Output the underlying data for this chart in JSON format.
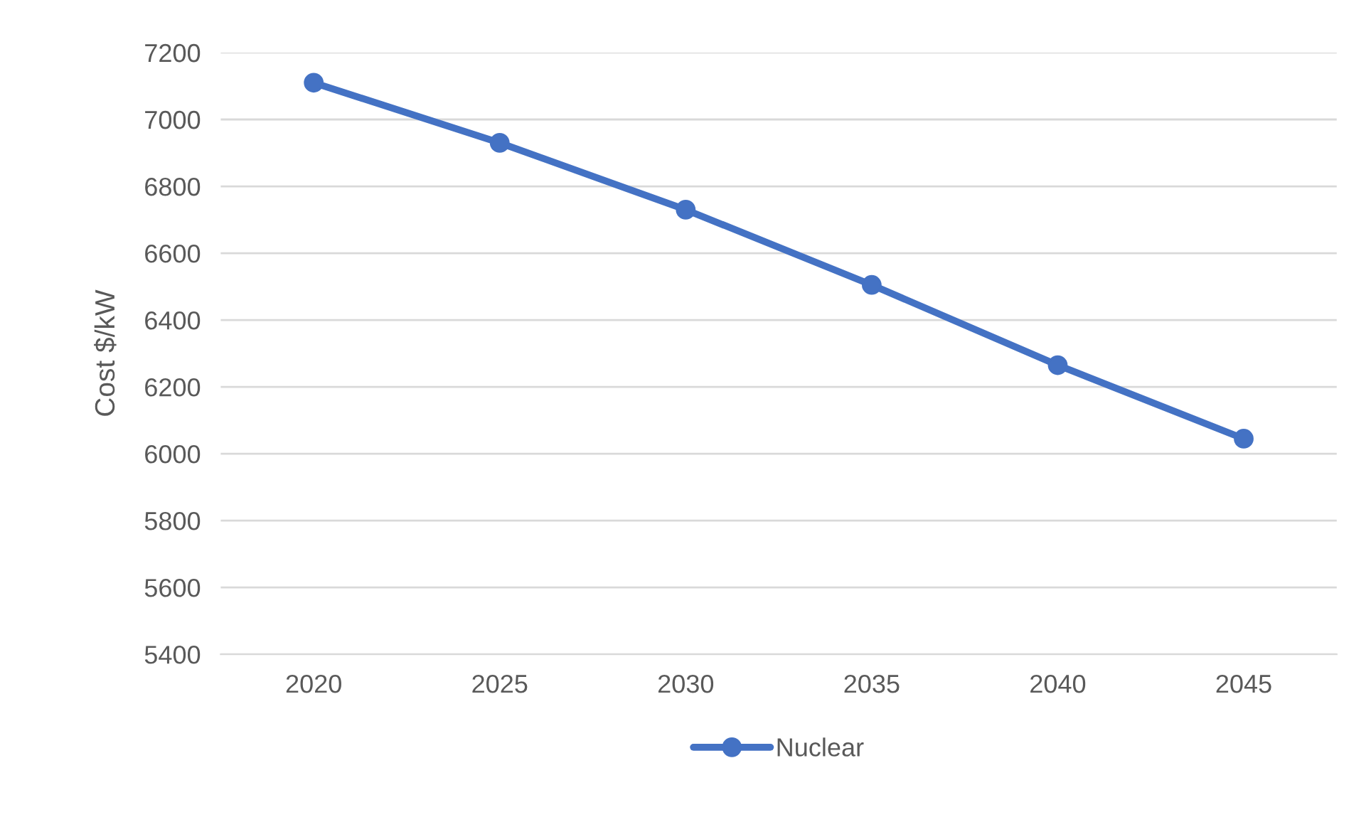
{
  "chart_data": {
    "type": "line",
    "ylabel": "Cost $/kW",
    "categories": [
      "2020",
      "2025",
      "2030",
      "2035",
      "2040",
      "2045"
    ],
    "series": [
      {
        "name": "Nuclear",
        "color": "#4472c4",
        "values": [
          7110,
          6930,
          6730,
          6505,
          6265,
          6045
        ]
      }
    ],
    "ylim": [
      5400,
      7200
    ],
    "yticks": [
      5400,
      5600,
      5800,
      6000,
      6200,
      6400,
      6600,
      6800,
      7000,
      7200
    ],
    "grid": "y",
    "legend": "bottom",
    "marker": "circle",
    "line_style": "solid"
  }
}
